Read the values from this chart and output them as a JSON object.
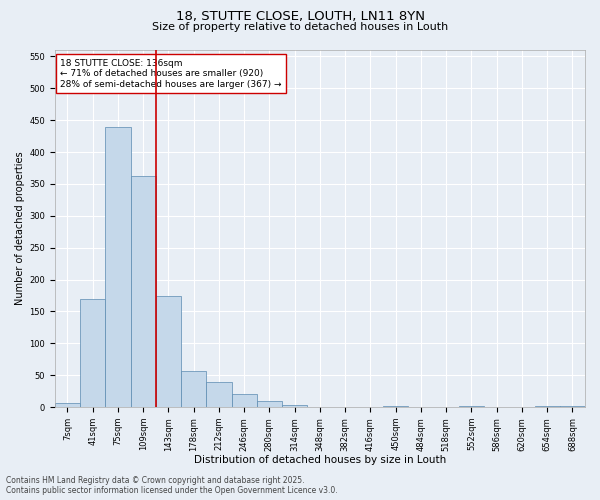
{
  "title": "18, STUTTE CLOSE, LOUTH, LN11 8YN",
  "subtitle": "Size of property relative to detached houses in Louth",
  "xlabel": "Distribution of detached houses by size in Louth",
  "ylabel": "Number of detached properties",
  "categories": [
    "7sqm",
    "41sqm",
    "75sqm",
    "109sqm",
    "143sqm",
    "178sqm",
    "212sqm",
    "246sqm",
    "280sqm",
    "314sqm",
    "348sqm",
    "382sqm",
    "416sqm",
    "450sqm",
    "484sqm",
    "518sqm",
    "552sqm",
    "586sqm",
    "620sqm",
    "654sqm",
    "688sqm"
  ],
  "values": [
    7,
    170,
    440,
    363,
    175,
    56,
    40,
    20,
    10,
    4,
    0,
    0,
    0,
    1,
    0,
    0,
    2,
    0,
    0,
    1,
    2
  ],
  "bar_color": "#c5d8ea",
  "bar_edge_color": "#5a8ab0",
  "vertical_line_x": 3.5,
  "vertical_line_color": "#cc0000",
  "annotation_text": "18 STUTTE CLOSE: 136sqm\n← 71% of detached houses are smaller (920)\n28% of semi-detached houses are larger (367) →",
  "annotation_box_color": "#ffffff",
  "annotation_box_edge_color": "#cc0000",
  "ylim": [
    0,
    560
  ],
  "yticks": [
    0,
    50,
    100,
    150,
    200,
    250,
    300,
    350,
    400,
    450,
    500,
    550
  ],
  "footer_text": "Contains HM Land Registry data © Crown copyright and database right 2025.\nContains public sector information licensed under the Open Government Licence v3.0.",
  "background_color": "#e8eef5",
  "plot_background_color": "#e8eef5",
  "title_fontsize": 9.5,
  "subtitle_fontsize": 8,
  "xlabel_fontsize": 7.5,
  "ylabel_fontsize": 7,
  "tick_fontsize": 6,
  "annotation_fontsize": 6.5,
  "footer_fontsize": 5.5
}
